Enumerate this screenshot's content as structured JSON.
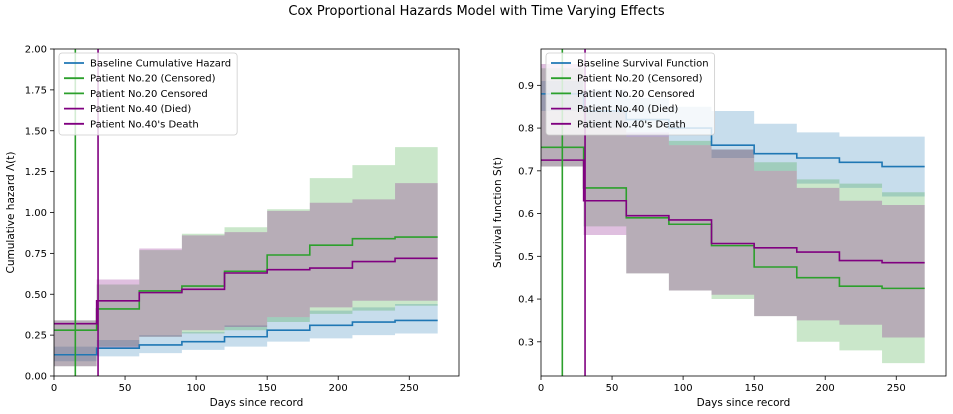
{
  "figure_title": "Cox Proportional Hazards Model with Time Varying Effects",
  "colors": {
    "blue": "#1f77b4",
    "green": "#2ca02c",
    "purple": "#800080"
  },
  "chart_data": [
    {
      "type": "line",
      "subtype": "step",
      "title": "",
      "xlabel": "Days since record",
      "ylabel": "Cumulative hazard Λ(t)",
      "xlim": [
        0,
        285
      ],
      "ylim": [
        0,
        2.0
      ],
      "xticks": [
        0,
        50,
        100,
        150,
        200,
        250
      ],
      "yticks": [
        0.0,
        0.25,
        0.5,
        0.75,
        1.0,
        1.25,
        1.5,
        1.75,
        2.0
      ],
      "ytick_labels": [
        "0.00",
        "0.25",
        "0.50",
        "0.75",
        "1.00",
        "1.25",
        "1.50",
        "1.75",
        "2.00"
      ],
      "grid": false,
      "legend_position": "top-left",
      "x": [
        0,
        30,
        60,
        90,
        120,
        150,
        180,
        210,
        240,
        270
      ],
      "series": [
        {
          "name": "Baseline Cumulative Hazard",
          "color": "#1f77b4",
          "values": [
            0.13,
            0.17,
            0.19,
            0.21,
            0.24,
            0.28,
            0.31,
            0.33,
            0.34,
            0.34
          ],
          "lower": [
            0.09,
            0.12,
            0.14,
            0.16,
            0.18,
            0.21,
            0.23,
            0.25,
            0.26,
            0.26
          ],
          "upper": [
            0.18,
            0.22,
            0.25,
            0.27,
            0.31,
            0.36,
            0.4,
            0.42,
            0.44,
            0.44
          ]
        },
        {
          "name": "Patient No.20 (Censored)",
          "color": "#2ca02c",
          "values": [
            0.28,
            0.41,
            0.52,
            0.55,
            0.64,
            0.74,
            0.8,
            0.84,
            0.85,
            0.85
          ],
          "lower": [
            0.06,
            0.18,
            0.24,
            0.26,
            0.28,
            0.33,
            0.38,
            0.4,
            0.43,
            0.45
          ],
          "upper": [
            0.34,
            0.56,
            0.77,
            0.87,
            0.91,
            1.02,
            1.21,
            1.29,
            1.4,
            1.44
          ]
        },
        {
          "name": "Patient No.40 (Died)",
          "color": "#800080",
          "values": [
            0.32,
            0.46,
            0.51,
            0.53,
            0.63,
            0.65,
            0.66,
            0.7,
            0.72,
            0.72
          ],
          "lower": [
            0.06,
            0.17,
            0.24,
            0.28,
            0.3,
            0.36,
            0.42,
            0.46,
            0.46,
            0.47
          ],
          "upper": [
            0.34,
            0.59,
            0.78,
            0.86,
            0.88,
            1.01,
            1.06,
            1.08,
            1.18,
            1.18
          ]
        }
      ],
      "vlines": [
        {
          "name": "Patient No.20 Censored",
          "x": 15,
          "color": "#2ca02c"
        },
        {
          "name": "Patient No.40's Death",
          "x": 31,
          "color": "#800080"
        }
      ],
      "legend": [
        {
          "label": "Baseline Cumulative Hazard",
          "color": "#1f77b4"
        },
        {
          "label": "Patient No.20 (Censored)",
          "color": "#2ca02c"
        },
        {
          "label": "Patient No.20 Censored",
          "color": "#2ca02c"
        },
        {
          "label": "Patient No.40 (Died)",
          "color": "#800080"
        },
        {
          "label": "Patient No.40's Death",
          "color": "#800080"
        }
      ]
    },
    {
      "type": "line",
      "subtype": "step",
      "title": "",
      "xlabel": "Days since record",
      "ylabel": "Survival function S(t)",
      "xlim": [
        0,
        285
      ],
      "ylim": [
        0.22,
        0.985
      ],
      "xticks": [
        0,
        50,
        100,
        150,
        200,
        250
      ],
      "yticks": [
        0.3,
        0.4,
        0.5,
        0.6,
        0.7,
        0.8,
        0.9
      ],
      "ytick_labels": [
        "0.3",
        "0.4",
        "0.5",
        "0.6",
        "0.7",
        "0.8",
        "0.9"
      ],
      "grid": false,
      "legend_position": "top-left",
      "x": [
        0,
        30,
        60,
        90,
        120,
        150,
        180,
        210,
        240,
        270
      ],
      "series": [
        {
          "name": "Baseline Survival Function",
          "color": "#1f77b4",
          "values": [
            0.88,
            0.84,
            0.82,
            0.8,
            0.76,
            0.74,
            0.73,
            0.72,
            0.71,
            0.71
          ],
          "lower": [
            0.84,
            0.8,
            0.78,
            0.76,
            0.73,
            0.7,
            0.67,
            0.66,
            0.64,
            0.64
          ],
          "upper": [
            0.91,
            0.89,
            0.87,
            0.85,
            0.84,
            0.81,
            0.79,
            0.78,
            0.78,
            0.78
          ]
        },
        {
          "name": "Patient No.20 (Censored)",
          "color": "#2ca02c",
          "values": [
            0.755,
            0.66,
            0.59,
            0.575,
            0.525,
            0.475,
            0.45,
            0.43,
            0.425,
            0.425
          ],
          "lower": [
            0.71,
            0.57,
            0.46,
            0.42,
            0.4,
            0.36,
            0.3,
            0.28,
            0.25,
            0.24
          ],
          "upper": [
            0.94,
            0.84,
            0.78,
            0.77,
            0.75,
            0.72,
            0.68,
            0.67,
            0.65,
            0.62
          ]
        },
        {
          "name": "Patient No.40 (Died)",
          "color": "#800080",
          "values": [
            0.725,
            0.63,
            0.595,
            0.585,
            0.53,
            0.52,
            0.51,
            0.49,
            0.485,
            0.485
          ],
          "lower": [
            0.71,
            0.55,
            0.46,
            0.42,
            0.41,
            0.36,
            0.35,
            0.34,
            0.31,
            0.31
          ],
          "upper": [
            0.95,
            0.84,
            0.79,
            0.76,
            0.75,
            0.7,
            0.66,
            0.63,
            0.62,
            0.62
          ]
        }
      ],
      "vlines": [
        {
          "name": "Patient No.20 Censored",
          "x": 15,
          "color": "#2ca02c"
        },
        {
          "name": "Patient No.40's Death",
          "x": 31,
          "color": "#800080"
        }
      ],
      "legend": [
        {
          "label": "Baseline Survival Function",
          "color": "#1f77b4"
        },
        {
          "label": "Patient No.20 (Censored)",
          "color": "#2ca02c"
        },
        {
          "label": "Patient No.20 Censored",
          "color": "#2ca02c"
        },
        {
          "label": "Patient No.40 (Died)",
          "color": "#800080"
        },
        {
          "label": "Patient No.40's Death",
          "color": "#800080"
        }
      ]
    }
  ]
}
